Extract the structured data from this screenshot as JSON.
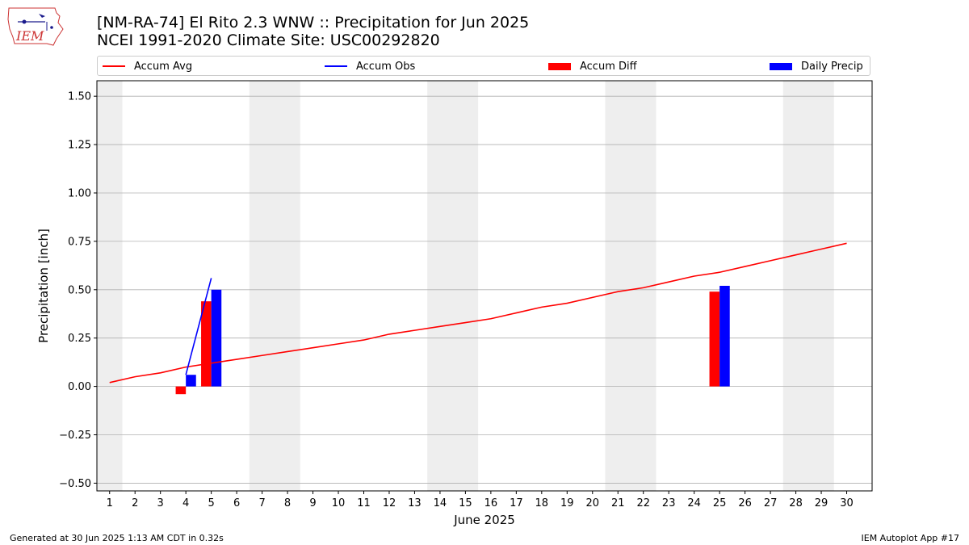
{
  "header": {
    "title_line1": "[NM-RA-74] El Rito 2.3 WNW :: Precipitation for Jun 2025",
    "title_line2": "NCEI 1991-2020 Climate Site: USC00292820",
    "logo_text": "IEM"
  },
  "legend": {
    "placement": "top, above plot",
    "items": [
      {
        "label": "Accum Avg",
        "kind": "line",
        "color": "#ff0000"
      },
      {
        "label": "Accum Obs",
        "kind": "line",
        "color": "#0000ff"
      },
      {
        "label": "Accum Diff",
        "kind": "rect",
        "color": "#ff0000"
      },
      {
        "label": "Daily Precip",
        "kind": "rect",
        "color": "#0000ff"
      }
    ]
  },
  "footer": {
    "left": "Generated at 30 Jun 2025 1:13 AM CDT in 0.32s",
    "right": "IEM Autoplot App #17"
  },
  "chart_data": {
    "type": "bar",
    "title": "[NM-RA-74] El Rito 2.3 WNW :: Precipitation for Jun 2025",
    "xlabel": "June 2025",
    "ylabel": "Precipitation [inch]",
    "x": [
      1,
      2,
      3,
      4,
      5,
      6,
      7,
      8,
      9,
      10,
      11,
      12,
      13,
      14,
      15,
      16,
      17,
      18,
      19,
      20,
      21,
      22,
      23,
      24,
      25,
      26,
      27,
      28,
      29,
      30
    ],
    "xlim": [
      0.5,
      31.0
    ],
    "ylim": [
      -0.54,
      1.58
    ],
    "yticks": [
      -0.5,
      -0.25,
      0.0,
      0.25,
      0.5,
      0.75,
      1.0,
      1.25,
      1.5
    ],
    "ytick_labels": [
      "−0.50",
      "−0.25",
      "0.00",
      "0.25",
      "0.50",
      "0.75",
      "1.00",
      "1.25",
      "1.50"
    ],
    "grid": "horizontal",
    "weekend_shading": [
      [
        0.5,
        1.5
      ],
      [
        6.5,
        8.5
      ],
      [
        13.5,
        15.5
      ],
      [
        20.5,
        22.5
      ],
      [
        27.5,
        29.5
      ]
    ],
    "weekend_color": "#eeeeee",
    "series": [
      {
        "name": "Accum Avg",
        "kind": "line",
        "color": "#ff0000",
        "x": [
          1,
          2,
          3,
          4,
          5,
          6,
          7,
          8,
          9,
          10,
          11,
          12,
          13,
          14,
          15,
          16,
          17,
          18,
          19,
          20,
          21,
          22,
          23,
          24,
          25,
          26,
          27,
          28,
          29,
          30
        ],
        "values": [
          0.02,
          0.05,
          0.07,
          0.1,
          0.12,
          0.14,
          0.16,
          0.18,
          0.2,
          0.22,
          0.24,
          0.27,
          0.29,
          0.31,
          0.33,
          0.35,
          0.38,
          0.41,
          0.43,
          0.46,
          0.49,
          0.51,
          0.54,
          0.57,
          0.59,
          0.62,
          0.65,
          0.68,
          0.71,
          0.74
        ]
      },
      {
        "name": "Accum Obs",
        "kind": "line",
        "color": "#0000ff",
        "x": [
          4,
          5
        ],
        "values": [
          0.06,
          0.56
        ]
      },
      {
        "name": "Accum Diff",
        "kind": "bar",
        "color": "#ff0000",
        "x": [
          4,
          5,
          25
        ],
        "values": [
          -0.04,
          0.44,
          0.49
        ]
      },
      {
        "name": "Daily Precip",
        "kind": "bar",
        "color": "#0000ff",
        "x": [
          4,
          5,
          25
        ],
        "values": [
          0.06,
          0.5,
          0.52
        ]
      }
    ]
  }
}
